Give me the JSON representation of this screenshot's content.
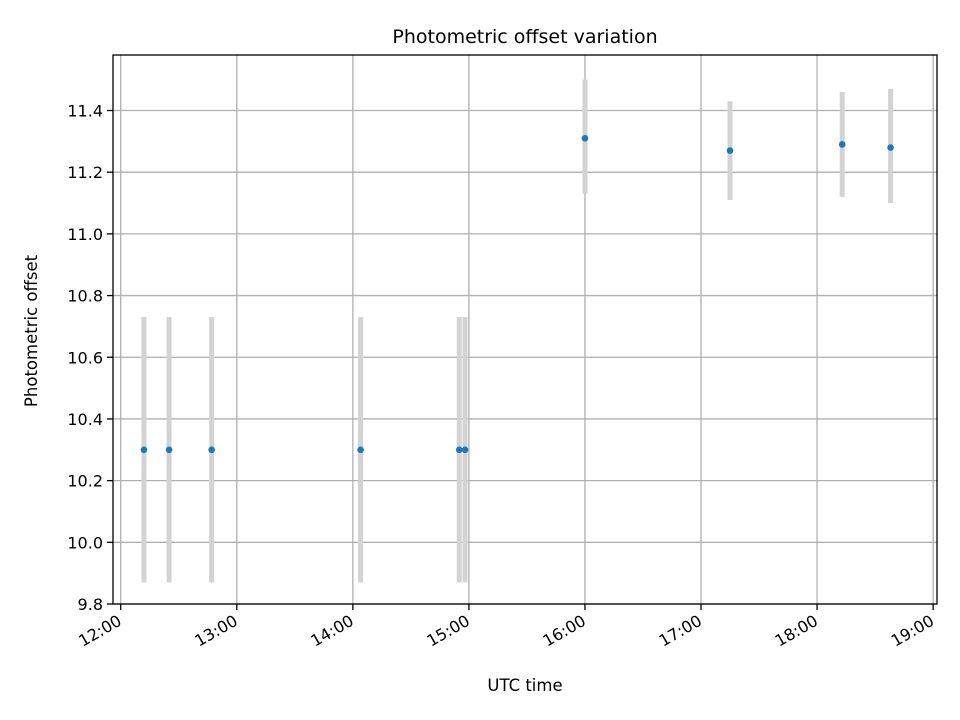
{
  "chart_data": {
    "type": "scatter",
    "title": "Photometric offset variation",
    "xlabel": "UTC time",
    "ylabel": "Photometric offset",
    "x_unit": "time of day (HH:MM UTC)",
    "xlim": [
      "11:56",
      "19:02"
    ],
    "ylim": [
      9.8,
      11.58
    ],
    "xticks": [
      "12:00",
      "13:00",
      "14:00",
      "15:00",
      "16:00",
      "17:00",
      "18:00",
      "19:00"
    ],
    "yticks": [
      "9.8",
      "10.0",
      "10.2",
      "10.4",
      "10.6",
      "10.8",
      "11.0",
      "11.2",
      "11.4"
    ],
    "grid": true,
    "legend": "none",
    "points": [
      {
        "x": "12:12",
        "y": 10.3,
        "yerr_low": 9.87,
        "yerr_high": 10.73
      },
      {
        "x": "12:25",
        "y": 10.3,
        "yerr_low": 9.87,
        "yerr_high": 10.73
      },
      {
        "x": "12:47",
        "y": 10.3,
        "yerr_low": 9.87,
        "yerr_high": 10.73
      },
      {
        "x": "14:04",
        "y": 10.3,
        "yerr_low": 9.87,
        "yerr_high": 10.73
      },
      {
        "x": "14:55",
        "y": 10.3,
        "yerr_low": 9.87,
        "yerr_high": 10.73
      },
      {
        "x": "14:58",
        "y": 10.3,
        "yerr_low": 9.87,
        "yerr_high": 10.73
      },
      {
        "x": "16:00",
        "y": 11.31,
        "yerr_low": 11.13,
        "yerr_high": 11.5
      },
      {
        "x": "17:15",
        "y": 11.27,
        "yerr_low": 11.11,
        "yerr_high": 11.43
      },
      {
        "x": "18:13",
        "y": 11.29,
        "yerr_low": 11.12,
        "yerr_high": 11.46
      },
      {
        "x": "18:38",
        "y": 11.28,
        "yerr_low": 11.1,
        "yerr_high": 11.47
      }
    ],
    "colors": {
      "point": "#1f77b4",
      "errorbar": "#d3d3d3",
      "grid": "#b0b0b0",
      "axes": "#000000"
    }
  }
}
